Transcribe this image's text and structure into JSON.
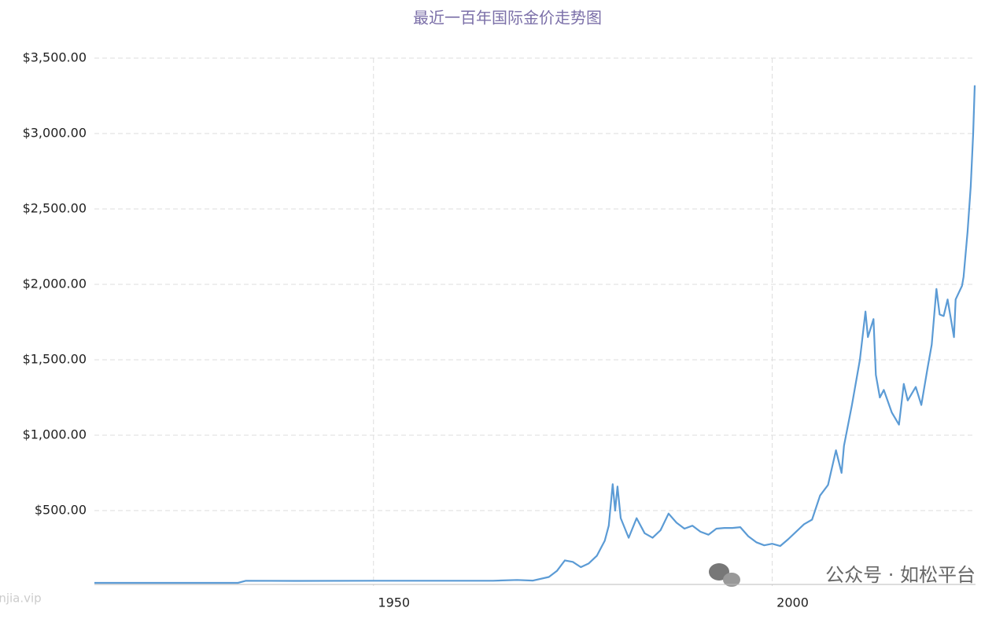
{
  "chart_data": {
    "type": "line",
    "title": "最近一百年国际金价走势图",
    "x": [
      1915,
      1933,
      1934,
      1940,
      1950,
      1965,
      1968,
      1970,
      1972,
      1973,
      1974,
      1975,
      1976,
      1977,
      1978,
      1979,
      1979.5,
      1980,
      1980.3,
      1980.6,
      1981,
      1982,
      1983,
      1984,
      1985,
      1986,
      1987,
      1988,
      1989,
      1990,
      1991,
      1992,
      1993,
      1994,
      1995,
      1996,
      1997,
      1998,
      1999,
      2000,
      2001,
      2002,
      2003,
      2004,
      2005,
      2006,
      2007,
      2008,
      2008.7,
      2009,
      2010,
      2011,
      2011.7,
      2012,
      2012.7,
      2013,
      2013.5,
      2014,
      2015,
      2015.9,
      2016.5,
      2017,
      2018,
      2018.7,
      2019.5,
      2020,
      2020.6,
      2021,
      2021.5,
      2022,
      2022.8,
      2023,
      2023.8,
      2024,
      2024.5,
      2024.9,
      2025.2,
      2025.4
    ],
    "values": [
      20.67,
      20.67,
      35,
      34,
      35,
      35,
      40,
      36,
      60,
      100,
      170,
      160,
      125,
      150,
      200,
      300,
      400,
      675,
      500,
      660,
      450,
      320,
      450,
      350,
      320,
      370,
      480,
      420,
      380,
      400,
      360,
      340,
      380,
      385,
      385,
      390,
      330,
      290,
      270,
      280,
      265,
      310,
      360,
      410,
      440,
      600,
      670,
      900,
      750,
      930,
      1200,
      1500,
      1820,
      1650,
      1770,
      1400,
      1250,
      1300,
      1150,
      1070,
      1340,
      1230,
      1320,
      1200,
      1450,
      1600,
      1970,
      1800,
      1790,
      1900,
      1650,
      1900,
      1990,
      2050,
      2350,
      2650,
      3000,
      3320
    ],
    "color": "#5b9bd5",
    "xlim": [
      1915,
      2025.5
    ],
    "xticks": [
      1950,
      2000
    ],
    "ylim": [
      0,
      3500
    ],
    "yticks": [
      {
        "value": 500,
        "label": "$500.00"
      },
      {
        "value": 1000,
        "label": "$1,000.00"
      },
      {
        "value": 1500,
        "label": "$1,500.00"
      },
      {
        "value": 2000,
        "label": "$2,000.00"
      },
      {
        "value": 2500,
        "label": "$2,500.00"
      },
      {
        "value": 3000,
        "label": "$3,000.00"
      },
      {
        "value": 3500,
        "label": "$3,500.00"
      }
    ],
    "grid": true,
    "watermark": "公众号 · 如松平台",
    "source_watermark": "jinjia.vip"
  }
}
